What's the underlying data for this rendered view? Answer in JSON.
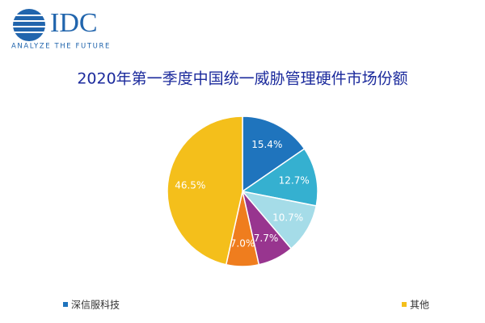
{
  "logo": {
    "brand": "IDC",
    "tagline": "ANALYZE THE FUTURE"
  },
  "chart_data": {
    "type": "pie",
    "title": "2020年第一季度中国统一威胁管理硬件市场份额",
    "categories": [
      "深信服科技",
      null,
      null,
      null,
      null,
      "其他"
    ],
    "values": [
      15.4,
      12.7,
      10.7,
      7.7,
      7.0,
      46.5
    ],
    "value_labels": [
      "15.4%",
      "12.7%",
      "10.7%",
      "7.7%",
      "7.0%",
      "46.5%"
    ],
    "colors": [
      "#1f74bd",
      "#35b0d0",
      "#a5dce8",
      "#98358f",
      "#ef7d1e",
      "#f4bf1b"
    ],
    "legend": "bottom"
  }
}
